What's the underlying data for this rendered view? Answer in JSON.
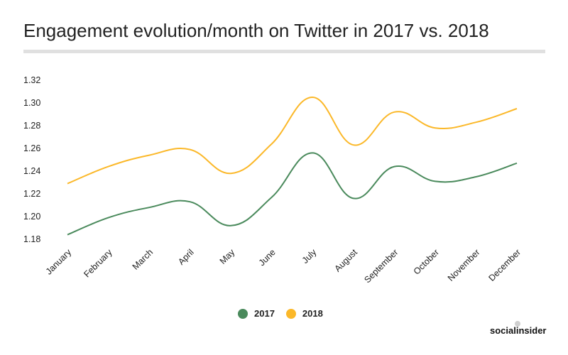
{
  "chart_data": {
    "type": "line",
    "title": "Engagement evolution/month on Twitter in 2017 vs. 2018",
    "categories": [
      "January",
      "February",
      "March",
      "April",
      "May",
      "June",
      "July",
      "August",
      "September",
      "October",
      "November",
      "December"
    ],
    "series": [
      {
        "name": "2017",
        "color": "#4a8a5c",
        "values": [
          1.184,
          1.199,
          1.208,
          1.213,
          1.192,
          1.217,
          1.256,
          1.216,
          1.244,
          1.231,
          1.235,
          1.247
        ]
      },
      {
        "name": "2018",
        "color": "#fbb829",
        "values": [
          1.229,
          1.244,
          1.254,
          1.259,
          1.238,
          1.264,
          1.305,
          1.263,
          1.292,
          1.278,
          1.283,
          1.295
        ]
      }
    ],
    "yticks": [
      "1.18",
      "1.20",
      "1.22",
      "1.24",
      "1.26",
      "1.28",
      "1.30",
      "1.32"
    ],
    "ylim": [
      1.18,
      1.32
    ],
    "legend_position": "bottom"
  },
  "brand": "socialinsider"
}
